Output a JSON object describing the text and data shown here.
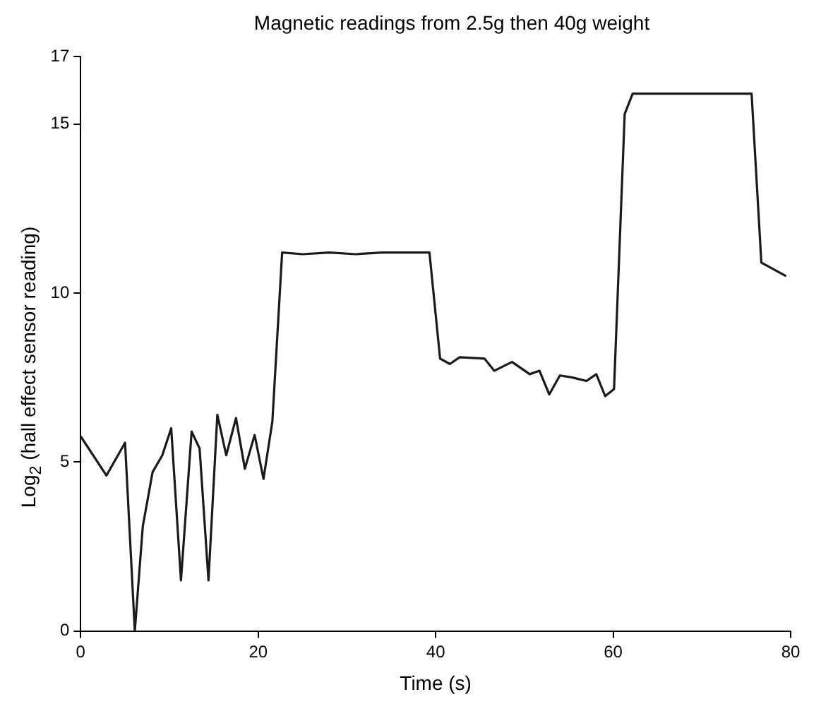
{
  "chart_data": {
    "type": "line",
    "title": "Magnetic readings from 2.5g then 40g weight",
    "xlabel": "Time (s)",
    "ylabel": "Log$_{2}$ (hall effect sensor reading)",
    "x": [
      0,
      2.9,
      5.0,
      6.1,
      7.0,
      8.1,
      9.2,
      10.2,
      11.3,
      12.5,
      13.4,
      14.4,
      15.4,
      16.4,
      17.5,
      18.5,
      19.6,
      20.6,
      21.6,
      22.7,
      25,
      28,
      31,
      34,
      37,
      39.3,
      40.5,
      41.6,
      42.7,
      45.5,
      46.6,
      48.6,
      50.6,
      51.7,
      52.8,
      54.0,
      55.4,
      57.0,
      58.1,
      59.1,
      60.1,
      61.3,
      62.2,
      75.6,
      76.7,
      79.5
    ],
    "series": [
      {
        "color": "#1a1a1a",
        "values": [
          5.76,
          4.6,
          5.57,
          0,
          3.1,
          4.7,
          5.2,
          6.0,
          1.5,
          5.9,
          5.4,
          1.5,
          6.4,
          5.2,
          6.3,
          4.8,
          5.8,
          4.5,
          6.2,
          11.2,
          11.15,
          11.2,
          11.15,
          11.2,
          11.2,
          11.2,
          8.06,
          7.9,
          8.1,
          8.06,
          7.7,
          7.96,
          7.6,
          7.7,
          7.0,
          7.56,
          7.5,
          7.4,
          7.6,
          6.95,
          7.16,
          15.3,
          15.9,
          15.9,
          10.9,
          10.5
        ]
      }
    ],
    "xlim": [
      0,
      80
    ],
    "xticks": [
      0,
      20,
      40,
      60,
      80
    ],
    "ylim": [
      0,
      17
    ],
    "yticks": [
      0,
      5,
      10,
      15,
      17
    ],
    "grid": false,
    "legend": false,
    "marker": "none",
    "line_style": "solid"
  }
}
